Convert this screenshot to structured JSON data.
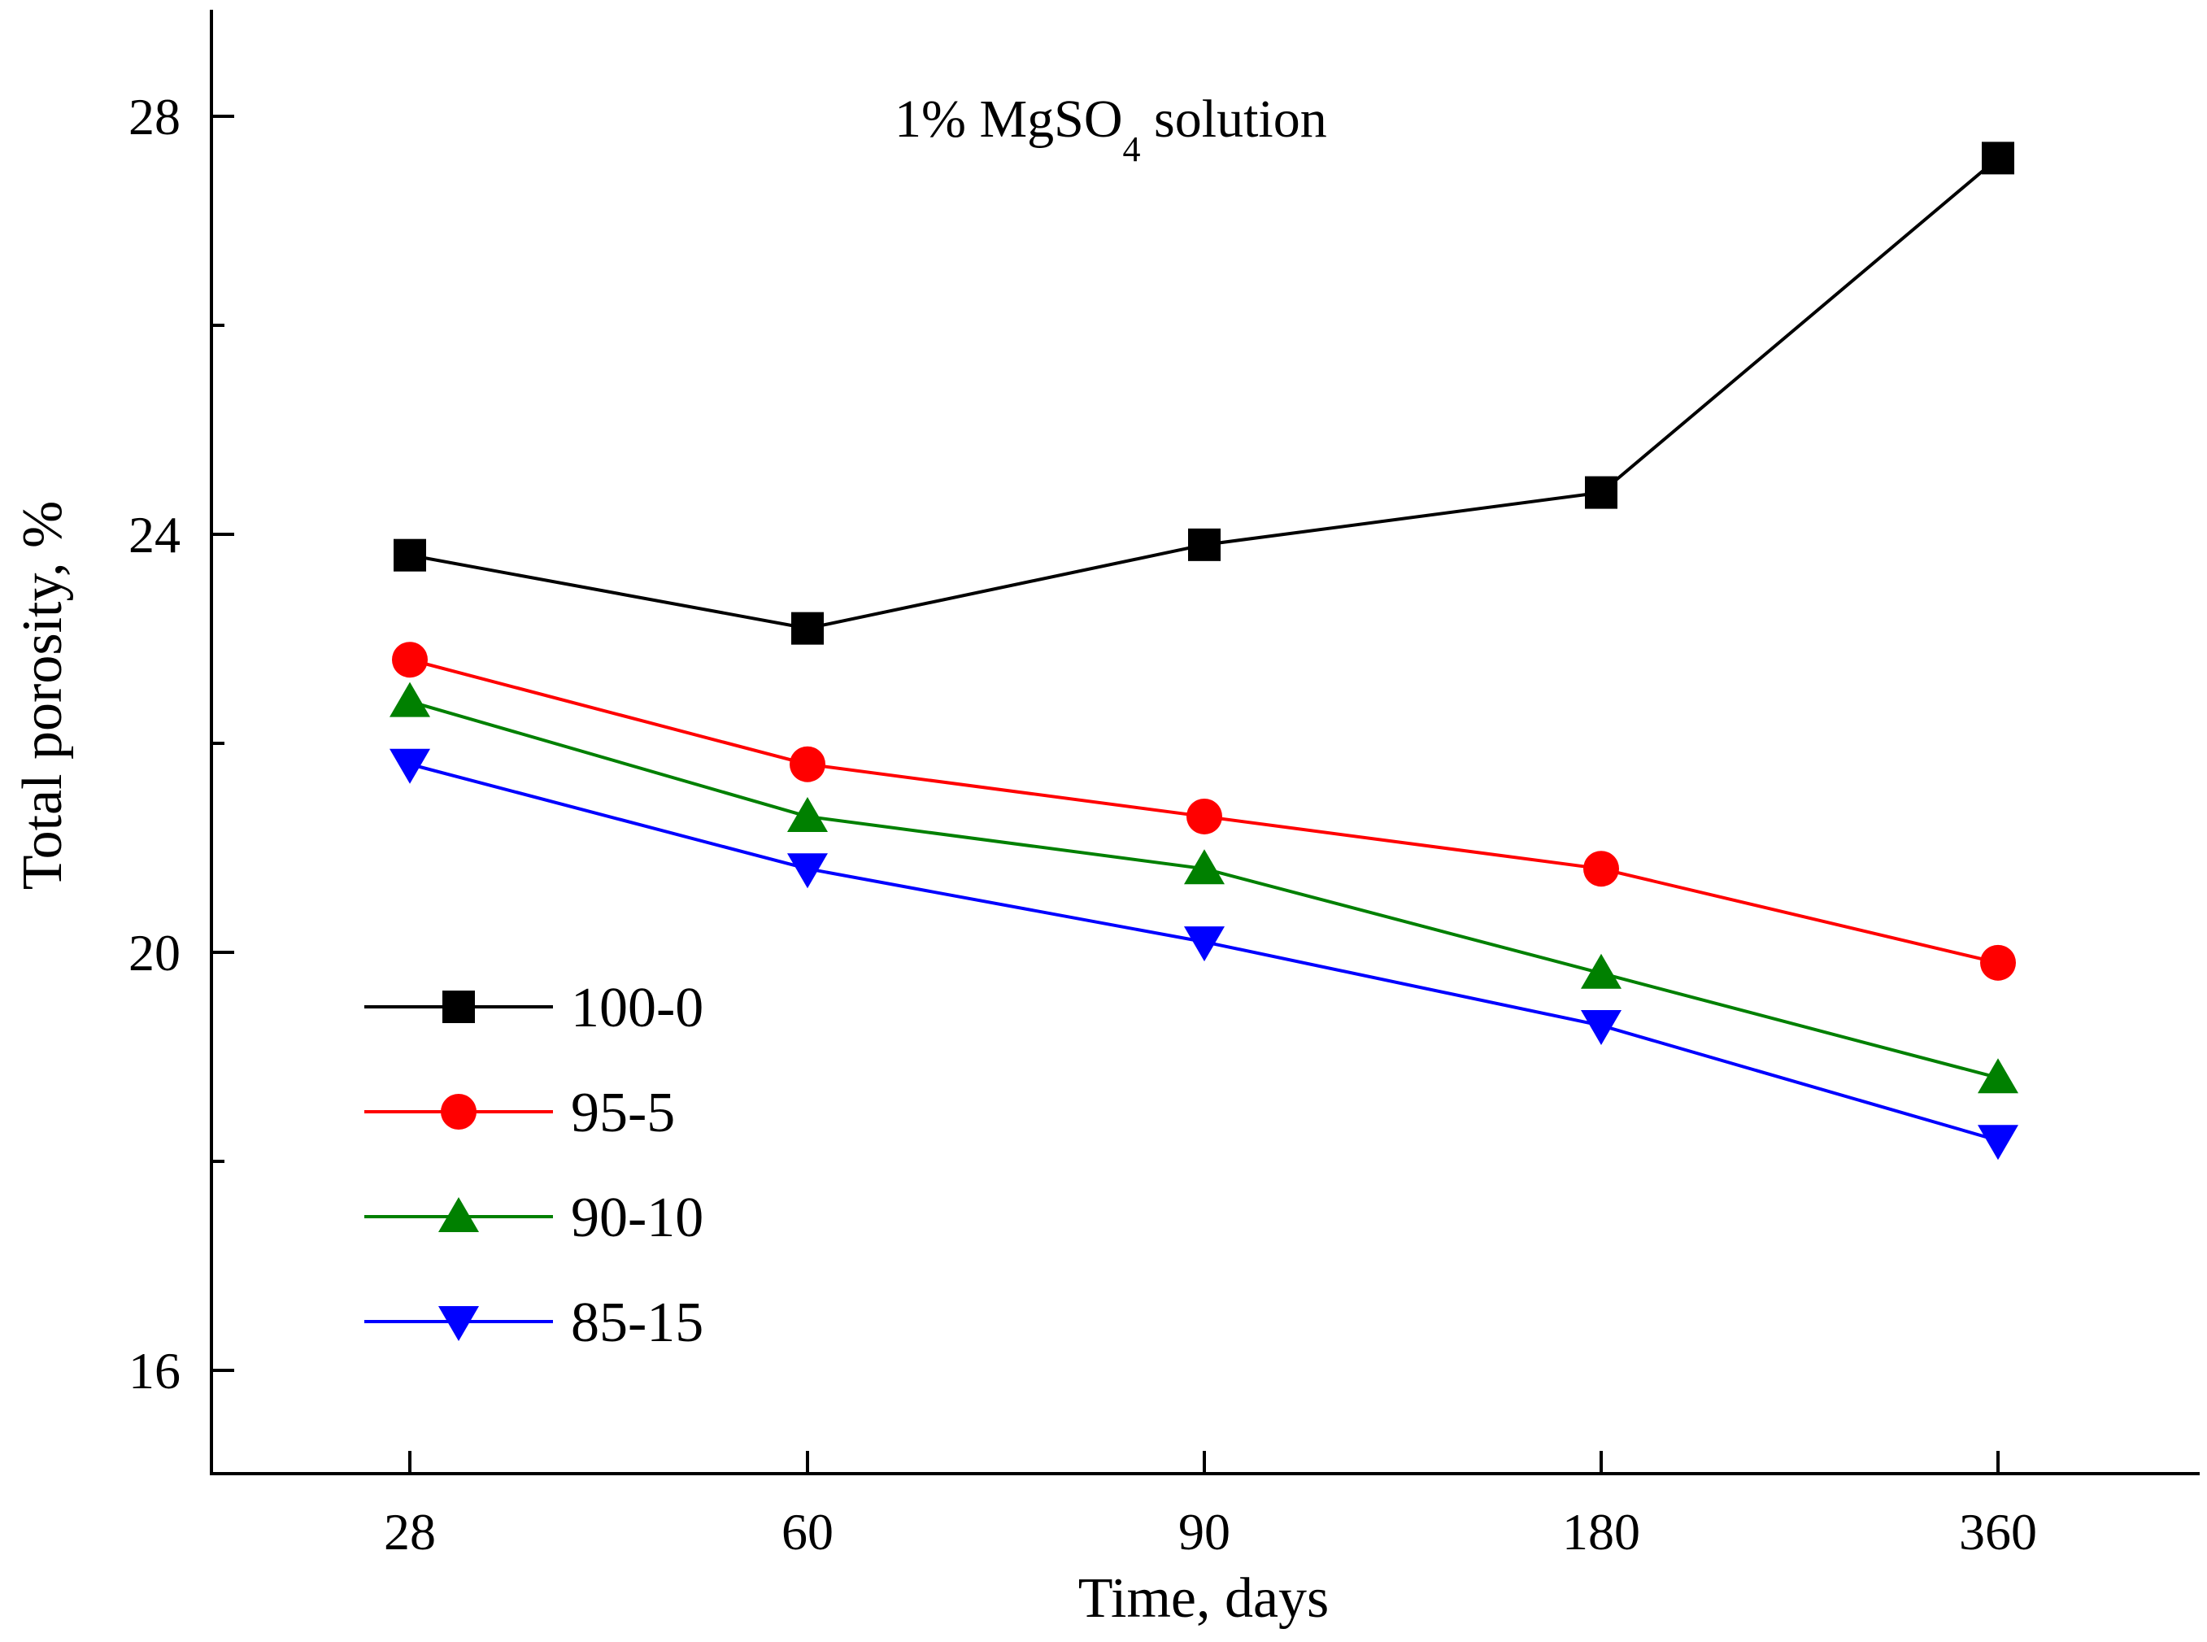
{
  "chart_data": {
    "type": "line",
    "title": {
      "prefix": "1% MgSO",
      "subscript": "4",
      "suffix": " solution"
    },
    "xlabel": "Time, days",
    "ylabel": "Total porosity, %",
    "categories": [
      "28",
      "60",
      "90",
      "180",
      "360"
    ],
    "ylim": [
      15,
      29
    ],
    "yticks": [
      16,
      20,
      24,
      28
    ],
    "yticks_minor": [
      18,
      22,
      26
    ],
    "series": [
      {
        "name": "100-0",
        "color": "#000000",
        "marker": "square",
        "values": [
          23.8,
          23.1,
          23.9,
          24.4,
          27.6
        ]
      },
      {
        "name": "95-5",
        "color": "#ff0000",
        "marker": "circle",
        "values": [
          22.8,
          21.8,
          21.3,
          20.8,
          19.9
        ]
      },
      {
        "name": "90-10",
        "color": "#008000",
        "marker": "triangle-up",
        "values": [
          22.4,
          21.3,
          20.8,
          19.8,
          18.8
        ]
      },
      {
        "name": "85-15",
        "color": "#0000ff",
        "marker": "triangle-down",
        "values": [
          21.8,
          20.8,
          20.1,
          19.3,
          18.2
        ]
      }
    ],
    "legend_position": "bottom-left",
    "grid": false
  }
}
